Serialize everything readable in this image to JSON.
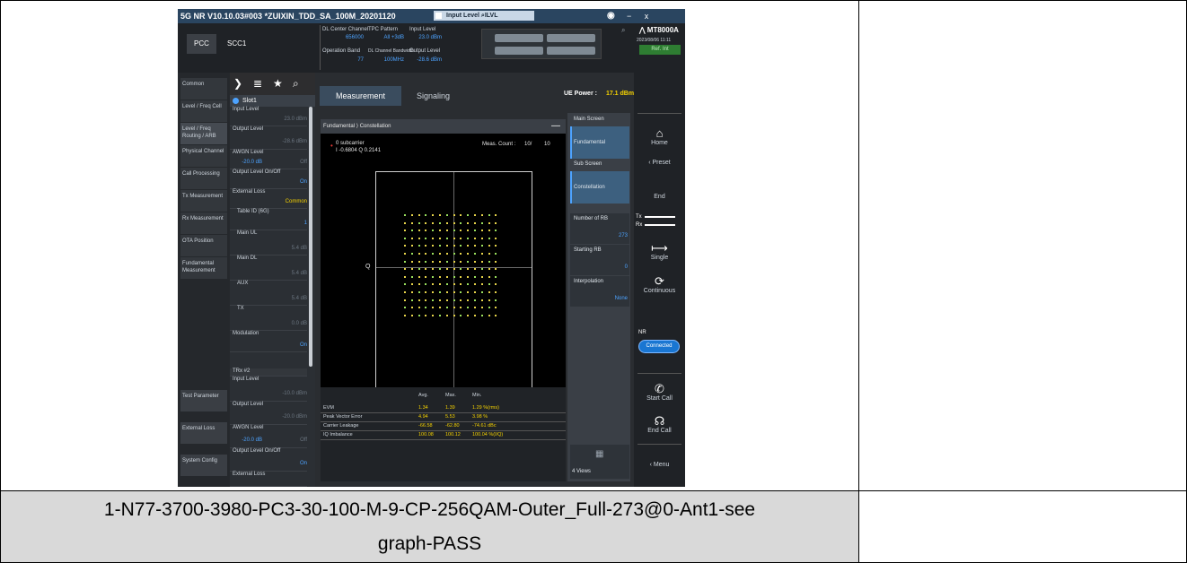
{
  "caption": {
    "line1": "1-N77-3700-3980-PC3-30-100-M-9-CP-256QAM-Outer_Full-273@0-Ant1-see",
    "line2": "graph-PASS"
  },
  "titlebar": {
    "title": "5G NR V10.10.03#003 *ZUIXIN_TDD_SA_100M_20201120",
    "input_level_label": "Input Level",
    "input_level_suffix": "ILVL",
    "window_controls": "− x"
  },
  "carrier_tabs": [
    "PCC",
    "SCC1"
  ],
  "params": {
    "dl_center_channel": {
      "label": "DL Center Channel",
      "value": "656000"
    },
    "tpc_pattern": {
      "label": "TPC Pattern",
      "value": "All +3dB"
    },
    "input_level": {
      "label": "Input Level",
      "value": "23.0 dBm"
    },
    "operation_band": {
      "label": "Operation Band",
      "value": "77"
    },
    "dl_channel_bandwidth": {
      "label": "DL Channel Bandwidth",
      "value": "100MHz"
    },
    "output_level": {
      "label": "Output Level",
      "value": "-28.6 dBm"
    }
  },
  "right_panel": {
    "model": "MT8000A",
    "datetime": "2023/08/06 11:11",
    "ref": "Ref. Int",
    "home": "Home",
    "preset": "Preset",
    "end": "End",
    "tx": "Tx",
    "rx": "Rx",
    "single": "Single",
    "continuous": "Continuous",
    "nr": "NR",
    "connected": "Connected",
    "start_call": "Start Call",
    "end_call": "End Call",
    "menu": "Menu"
  },
  "left_tabs": [
    "Common",
    "Level / Freq Cell",
    "Level / Freq Routing / ARB",
    "Physical Channel",
    "Call Processing",
    "Tx Measurement",
    "Rx Measurement",
    "OTA Position",
    "Fundamental Measurement"
  ],
  "left_tabs_bottom": [
    "Test Parameter",
    "External Loss",
    "System Config"
  ],
  "slot": {
    "header": "Slot1",
    "items": [
      {
        "label": "Input Level",
        "value": "23.0 dBm"
      },
      {
        "label": "Output Level",
        "value": "-28.6 dBm"
      },
      {
        "label": "AWGN Level",
        "value": "-20.0 dB",
        "extra": "Off"
      },
      {
        "label": "Output Level On/Off",
        "value": "On"
      },
      {
        "label": "External Loss",
        "value": "Common"
      },
      {
        "label": "Table ID (6G)",
        "value": "1"
      },
      {
        "label": "Main UL",
        "value": "5.4 dB"
      },
      {
        "label": "Main DL",
        "value": "5.4 dB"
      },
      {
        "label": "AUX",
        "value": "5.4 dB"
      },
      {
        "label": "TX",
        "value": "0.0 dB"
      },
      {
        "label": "Modulation",
        "value": "On"
      }
    ],
    "trx2": "TRx #2",
    "items2": [
      {
        "label": "Input Level",
        "value": "-10.0 dBm"
      },
      {
        "label": "Output Level",
        "value": "-20.0 dBm"
      },
      {
        "label": "AWGN Level",
        "value": "-20.0 dB",
        "extra": "Off"
      },
      {
        "label": "Output Level On/Off",
        "value": "On"
      },
      {
        "label": "External Loss",
        "value": ""
      }
    ]
  },
  "main_tabs": [
    "Measurement",
    "Signaling"
  ],
  "ue_power": {
    "label": "UE Power :",
    "value": "17.1 dBm"
  },
  "breadcrumb": {
    "a": "Fundamental",
    "b": "Constellation"
  },
  "plot": {
    "subcarrier": "0 subcarrier",
    "iq": "I -0.6804 Q 0.2141",
    "meas_count_label": "Meas. Count :",
    "meas_count_value": "10/",
    "meas_count_total": "10",
    "axis_q": "Q",
    "axis_i": "I"
  },
  "results": {
    "headers": [
      "Avg.",
      "Max.",
      "Min."
    ],
    "rows": [
      {
        "name": "EVM",
        "avg": "1.34",
        "max": "1.39",
        "min": "1.29 %(rms)"
      },
      {
        "name": "Peak Vector Error",
        "avg": "4.94",
        "max": "5.53",
        "min": "3.98 %"
      },
      {
        "name": "Carrier Leakage",
        "avg": "-66.58",
        "max": "-62.80",
        "min": "-74.61 dBc"
      },
      {
        "name": "IQ Imbalance",
        "avg": "100.08",
        "max": "100.12",
        "min": "100.04 %(I/Q)"
      }
    ]
  },
  "side": {
    "main_screen": "Main Screen",
    "fundamental": "Fundamental",
    "sub_screen": "Sub Screen",
    "constellation": "Constellation",
    "number_of_rb": "Number of RB",
    "number_of_rb_value": "273",
    "starting_rb": "Starting RB",
    "starting_rb_value": "0",
    "interpolation": "Interpolation",
    "interpolation_value": "None",
    "views": "4 Views"
  },
  "colors": {
    "accent": "#4da3ff",
    "yellow": "#f5d200",
    "connected": "#1976d2"
  }
}
